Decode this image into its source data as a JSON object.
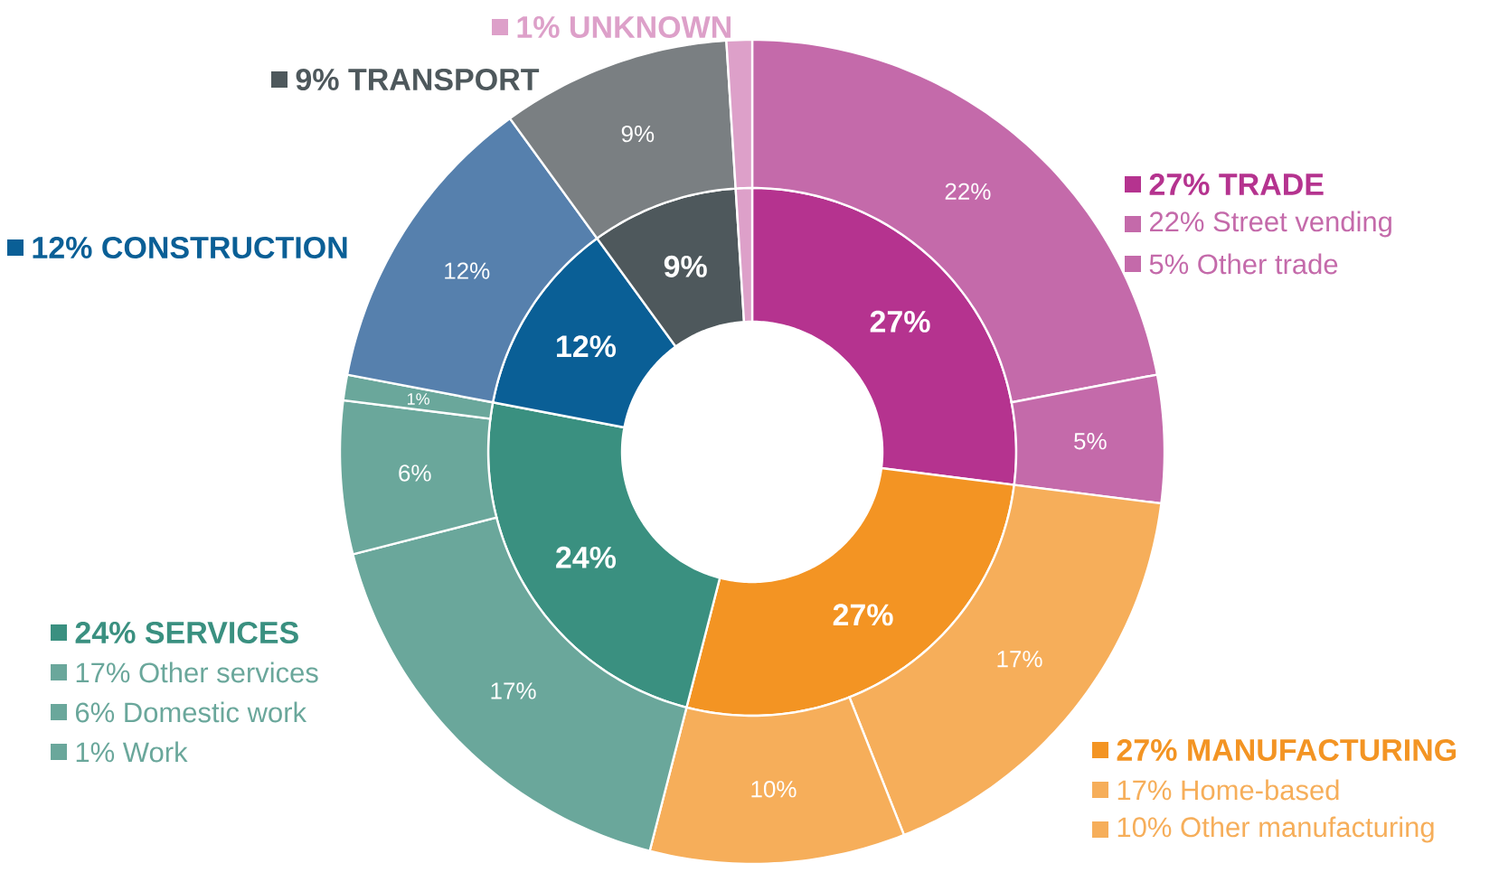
{
  "chart_data": [
    {
      "type": "donut",
      "categories": [
        "27% TRADE",
        "27% MANUFACTURING",
        "24% SERVICES",
        "12% CONSTRUCTION",
        "9% TRANSPORT",
        "1% UNKNOWN"
      ],
      "values": [
        27,
        27,
        24,
        12,
        9,
        1
      ],
      "colors": [
        "#b5338f",
        "#f39423",
        "#3a9080",
        "#0a5f96",
        "#4e585c",
        "#dda0c9"
      ],
      "value_labels": [
        "27%",
        "27%",
        "24%",
        "12%",
        "9%",
        null
      ],
      "legend": "right"
    },
    {
      "type": "donut",
      "categories": [
        "22% Street vending",
        "5% Other trade",
        "17% Home-based",
        "10% Other manufacturing",
        "17% Other services",
        "6% Domestic work",
        "1% Work",
        null,
        null,
        null
      ],
      "values": [
        22,
        5,
        17,
        10,
        17,
        6,
        1,
        12,
        9,
        1
      ],
      "colors": [
        "#c46aaa",
        "#c46aaa",
        "#f6ae5a",
        "#f6ae5a",
        "#6aa79b",
        "#6aa79b",
        "#6aa79b",
        "#5680ad",
        "#7a7f82",
        "#dda0c9"
      ],
      "value_labels": [
        "22%",
        "5%",
        "17%",
        "10%",
        "17%",
        "6%",
        "1%",
        "12%",
        "9%",
        null
      ],
      "legend": "right"
    }
  ]
}
